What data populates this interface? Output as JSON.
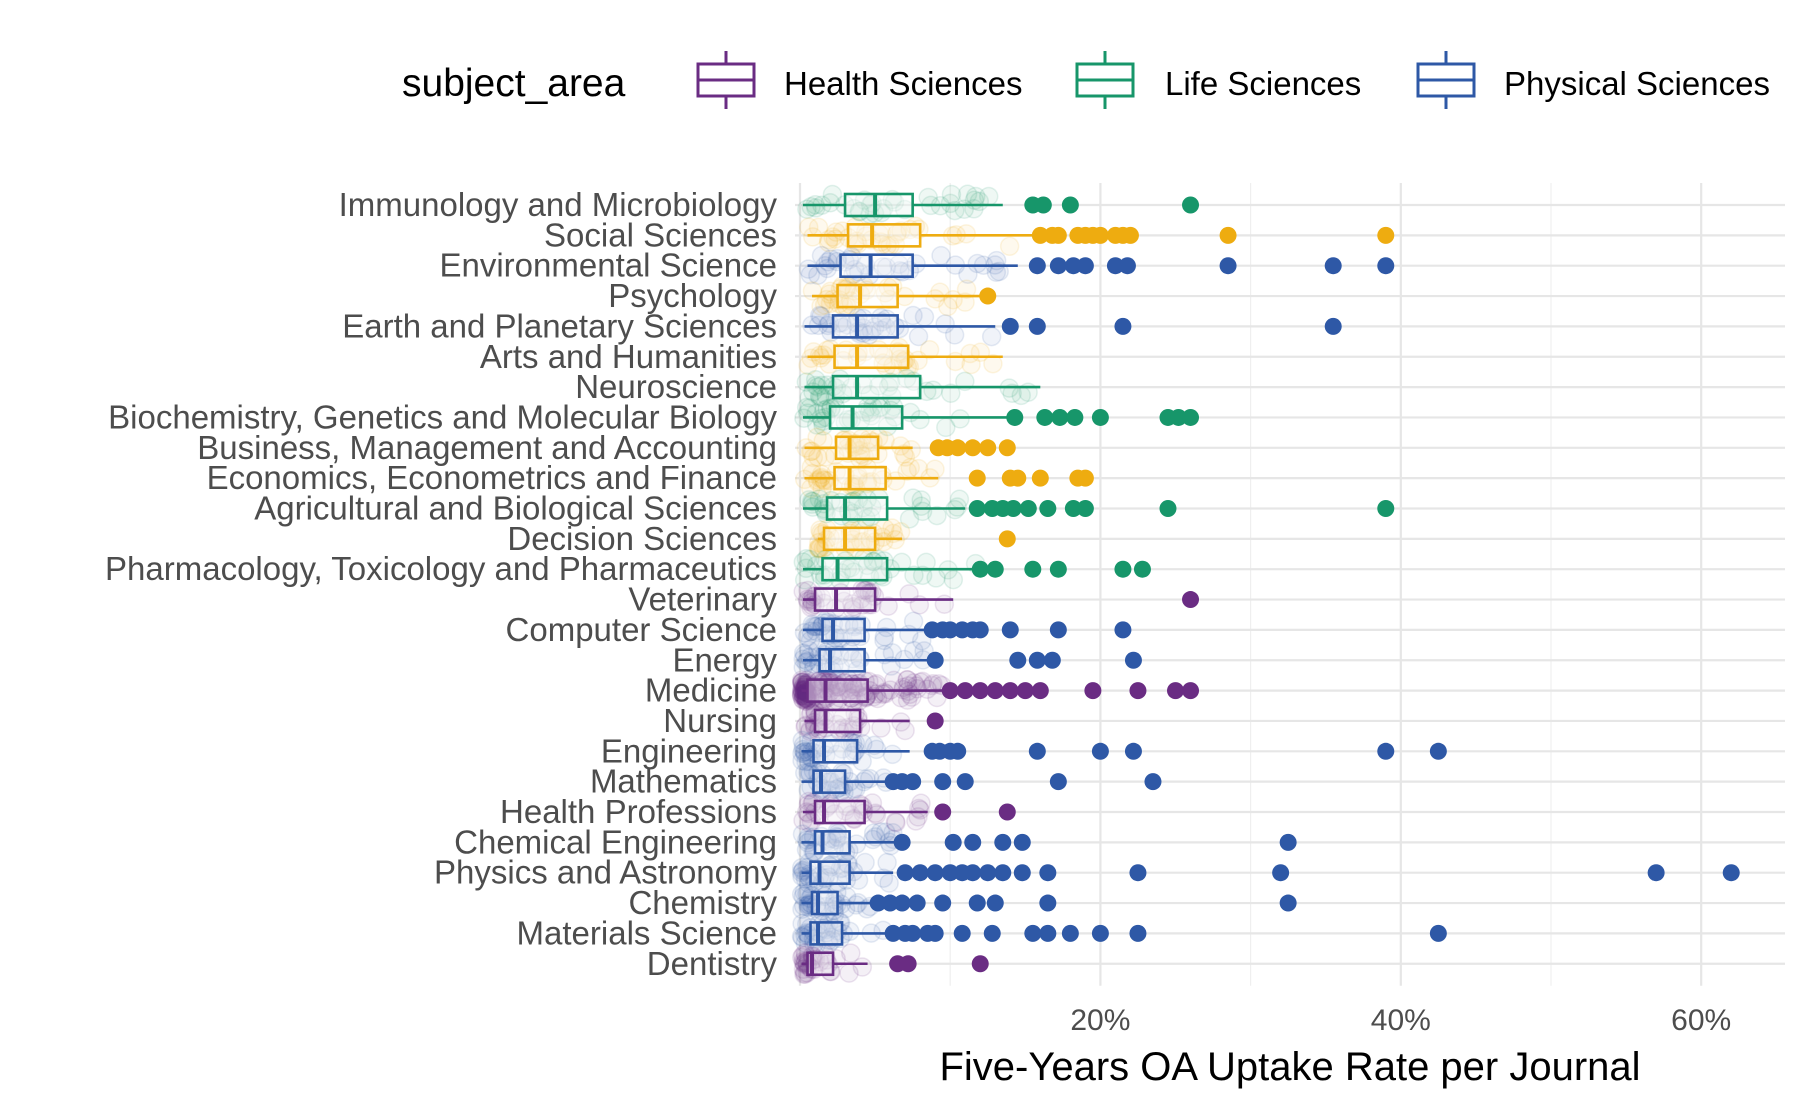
{
  "colors": {
    "Health Sciences": "#6A2C83",
    "Life Sciences": "#17966A",
    "Physical Sciences": "#2E58A6",
    "Social Sciences": "#EEAC10"
  },
  "chart_data": {
    "type": "boxplot",
    "title": "",
    "xlabel": "Five-Years OA Uptake Rate per Journal",
    "ylabel": "",
    "xlim": [
      0,
      0.65
    ],
    "x_ticks": [
      {
        "value": 0.2,
        "label": "20%"
      },
      {
        "value": 0.4,
        "label": "40%"
      },
      {
        "value": 0.6,
        "label": "60%"
      }
    ],
    "orientation": "horizontal",
    "grid": true,
    "legend": {
      "title": "subject_area",
      "position": "top",
      "entries": [
        "Health Sciences",
        "Life Sciences",
        "Physical Sciences"
      ]
    },
    "categories": [
      {
        "name": "Immunology and Microbiology",
        "group": "Life Sciences",
        "lw": 0.002,
        "q1": 0.03,
        "median": 0.05,
        "q3": 0.075,
        "uw": 0.135,
        "outliers": [
          0.155,
          0.162,
          0.18,
          0.26
        ]
      },
      {
        "name": "Social Sciences",
        "group": "Social Sciences",
        "lw": 0.005,
        "q1": 0.032,
        "median": 0.048,
        "q3": 0.08,
        "uw": 0.155,
        "outliers": [
          0.16,
          0.168,
          0.172,
          0.185,
          0.19,
          0.195,
          0.2,
          0.21,
          0.215,
          0.22,
          0.285,
          0.39
        ]
      },
      {
        "name": "Environmental Science",
        "group": "Physical Sciences",
        "lw": 0.005,
        "q1": 0.027,
        "median": 0.047,
        "q3": 0.075,
        "uw": 0.145,
        "outliers": [
          0.158,
          0.172,
          0.182,
          0.19,
          0.21,
          0.218,
          0.285,
          0.355,
          0.39
        ]
      },
      {
        "name": "Psychology",
        "group": "Social Sciences",
        "lw": 0.008,
        "q1": 0.025,
        "median": 0.04,
        "q3": 0.065,
        "uw": 0.122,
        "outliers": [
          0.125
        ]
      },
      {
        "name": "Earth and Planetary Sciences",
        "group": "Physical Sciences",
        "lw": 0.003,
        "q1": 0.022,
        "median": 0.038,
        "q3": 0.065,
        "uw": 0.13,
        "outliers": [
          0.14,
          0.158,
          0.215,
          0.355
        ]
      },
      {
        "name": "Arts and Humanities",
        "group": "Social Sciences",
        "lw": 0.005,
        "q1": 0.023,
        "median": 0.038,
        "q3": 0.072,
        "uw": 0.135,
        "outliers": []
      },
      {
        "name": "Neuroscience",
        "group": "Life Sciences",
        "lw": 0.003,
        "q1": 0.022,
        "median": 0.038,
        "q3": 0.08,
        "uw": 0.16,
        "outliers": []
      },
      {
        "name": "Biochemistry, Genetics and Molecular Biology",
        "group": "Life Sciences",
        "lw": 0.002,
        "q1": 0.02,
        "median": 0.035,
        "q3": 0.068,
        "uw": 0.14,
        "outliers": [
          0.143,
          0.163,
          0.173,
          0.183,
          0.2,
          0.245,
          0.252,
          0.26
        ]
      },
      {
        "name": "Business, Management and Accounting",
        "group": "Social Sciences",
        "lw": 0.003,
        "q1": 0.024,
        "median": 0.033,
        "q3": 0.052,
        "uw": 0.075,
        "outliers": [
          0.092,
          0.098,
          0.105,
          0.115,
          0.125,
          0.138
        ]
      },
      {
        "name": "Economics, Econometrics and Finance",
        "group": "Social Sciences",
        "lw": 0.003,
        "q1": 0.023,
        "median": 0.033,
        "q3": 0.057,
        "uw": 0.092,
        "outliers": [
          0.118,
          0.14,
          0.145,
          0.16,
          0.185,
          0.19
        ]
      },
      {
        "name": "Agricultural and Biological Sciences",
        "group": "Life Sciences",
        "lw": 0.002,
        "q1": 0.018,
        "median": 0.03,
        "q3": 0.058,
        "uw": 0.11,
        "outliers": [
          0.118,
          0.128,
          0.135,
          0.142,
          0.152,
          0.165,
          0.182,
          0.19,
          0.245,
          0.39
        ]
      },
      {
        "name": "Decision Sciences",
        "group": "Social Sciences",
        "lw": 0.012,
        "q1": 0.016,
        "median": 0.03,
        "q3": 0.05,
        "uw": 0.068,
        "outliers": [
          0.138
        ]
      },
      {
        "name": "Pharmacology, Toxicology and Pharmaceutics",
        "group": "Life Sciences",
        "lw": 0.002,
        "q1": 0.015,
        "median": 0.025,
        "q3": 0.058,
        "uw": 0.118,
        "outliers": [
          0.12,
          0.13,
          0.155,
          0.172,
          0.215,
          0.228
        ]
      },
      {
        "name": "Veterinary",
        "group": "Health Sciences",
        "lw": 0.002,
        "q1": 0.01,
        "median": 0.024,
        "q3": 0.05,
        "uw": 0.102,
        "outliers": [
          0.26
        ]
      },
      {
        "name": "Computer Science",
        "group": "Physical Sciences",
        "lw": 0.002,
        "q1": 0.015,
        "median": 0.022,
        "q3": 0.043,
        "uw": 0.085,
        "outliers": [
          0.088,
          0.095,
          0.1,
          0.108,
          0.115,
          0.12,
          0.14,
          0.172,
          0.215
        ]
      },
      {
        "name": "Energy",
        "group": "Physical Sciences",
        "lw": 0.002,
        "q1": 0.013,
        "median": 0.02,
        "q3": 0.043,
        "uw": 0.085,
        "outliers": [
          0.09,
          0.145,
          0.158,
          0.168,
          0.222
        ]
      },
      {
        "name": "Medicine",
        "group": "Health Sciences",
        "lw": 0.001,
        "q1": 0.005,
        "median": 0.017,
        "q3": 0.045,
        "uw": 0.095,
        "outliers": [
          0.1,
          0.11,
          0.12,
          0.13,
          0.14,
          0.15,
          0.16,
          0.195,
          0.225,
          0.25,
          0.26
        ]
      },
      {
        "name": "Nursing",
        "group": "Health Sciences",
        "lw": 0.003,
        "q1": 0.01,
        "median": 0.017,
        "q3": 0.04,
        "uw": 0.073,
        "outliers": [
          0.09
        ]
      },
      {
        "name": "Engineering",
        "group": "Physical Sciences",
        "lw": 0.001,
        "q1": 0.009,
        "median": 0.016,
        "q3": 0.038,
        "uw": 0.073,
        "outliers": [
          0.088,
          0.093,
          0.1,
          0.105,
          0.158,
          0.2,
          0.222,
          0.39,
          0.425
        ]
      },
      {
        "name": "Mathematics",
        "group": "Physical Sciences",
        "lw": 0.001,
        "q1": 0.009,
        "median": 0.014,
        "q3": 0.03,
        "uw": 0.058,
        "outliers": [
          0.062,
          0.068,
          0.075,
          0.095,
          0.11,
          0.172,
          0.235
        ]
      },
      {
        "name": "Health Professions",
        "group": "Health Sciences",
        "lw": 0.002,
        "q1": 0.01,
        "median": 0.016,
        "q3": 0.043,
        "uw": 0.085,
        "outliers": [
          0.095,
          0.138
        ]
      },
      {
        "name": "Chemical Engineering",
        "group": "Physical Sciences",
        "lw": 0.001,
        "q1": 0.01,
        "median": 0.015,
        "q3": 0.033,
        "uw": 0.065,
        "outliers": [
          0.068,
          0.102,
          0.115,
          0.135,
          0.148,
          0.325
        ]
      },
      {
        "name": "Physics and Astronomy",
        "group": "Physical Sciences",
        "lw": 0.001,
        "q1": 0.007,
        "median": 0.013,
        "q3": 0.033,
        "uw": 0.062,
        "outliers": [
          0.07,
          0.08,
          0.09,
          0.1,
          0.108,
          0.115,
          0.125,
          0.135,
          0.148,
          0.165,
          0.225,
          0.32,
          0.57,
          0.62
        ]
      },
      {
        "name": "Chemistry",
        "group": "Physical Sciences",
        "lw": 0.001,
        "q1": 0.008,
        "median": 0.012,
        "q3": 0.025,
        "uw": 0.048,
        "outliers": [
          0.052,
          0.06,
          0.068,
          0.078,
          0.095,
          0.118,
          0.13,
          0.165,
          0.325
        ]
      },
      {
        "name": "Materials Science",
        "group": "Physical Sciences",
        "lw": 0.001,
        "q1": 0.007,
        "median": 0.012,
        "q3": 0.028,
        "uw": 0.058,
        "outliers": [
          0.062,
          0.07,
          0.075,
          0.085,
          0.09,
          0.108,
          0.128,
          0.155,
          0.165,
          0.18,
          0.2,
          0.225,
          0.425
        ]
      },
      {
        "name": "Dentistry",
        "group": "Health Sciences",
        "lw": 0.001,
        "q1": 0.005,
        "median": 0.008,
        "q3": 0.022,
        "uw": 0.045,
        "outliers": [
          0.065,
          0.072,
          0.12
        ]
      }
    ]
  }
}
